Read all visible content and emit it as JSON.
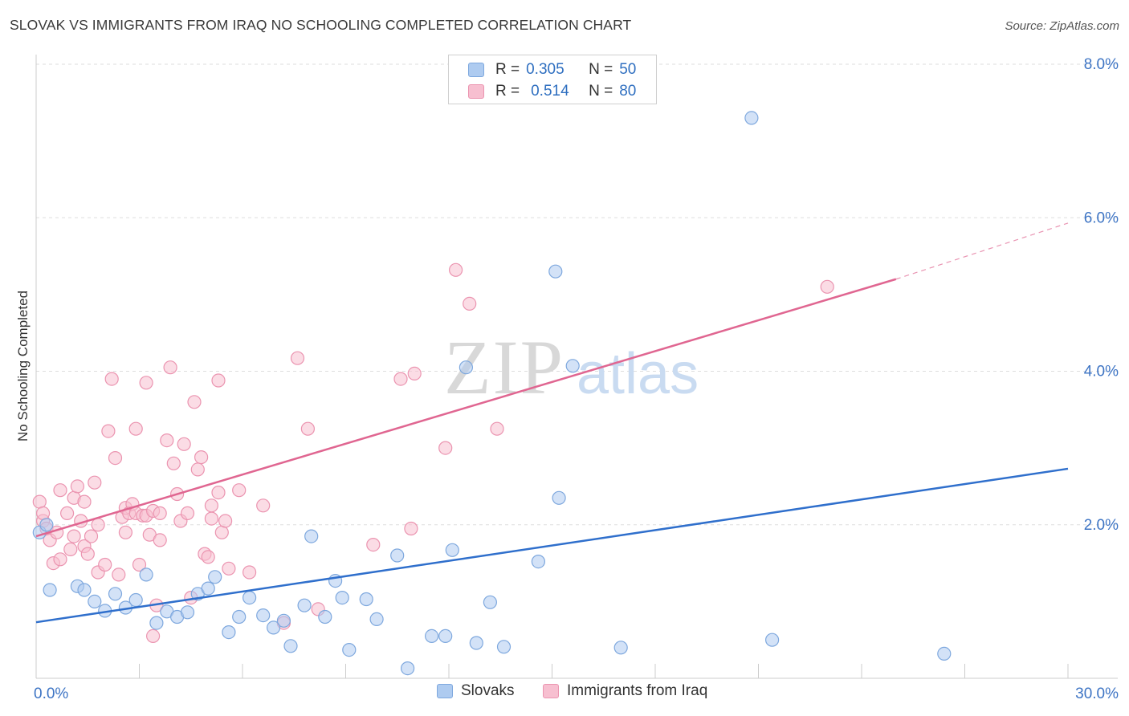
{
  "header": {
    "title": "SLOVAK VS IMMIGRANTS FROM IRAQ NO SCHOOLING COMPLETED CORRELATION CHART",
    "source": "Source: ZipAtlas.com"
  },
  "watermark": {
    "zip": "ZIP",
    "atlas": "atlas"
  },
  "legend": {
    "r_label": "R =",
    "n_label": "N =",
    "series": [
      {
        "name": "Slovaks",
        "r": "0.305",
        "n": "50"
      },
      {
        "name": "Immigrants from Iraq",
        "r": "0.514",
        "n": "80"
      }
    ]
  },
  "colors": {
    "slovaks_fill": "#aecbf0",
    "slovaks_stroke": "#7ea8de",
    "slovaks_line": "#2f6fcc",
    "iraq_fill": "#f7bfd0",
    "iraq_stroke": "#eb94b0",
    "iraq_line": "#e06691",
    "axis_text": "#3d74c4",
    "grid": "#dddddd"
  },
  "chart_data": {
    "type": "scatter",
    "title": "SLOVAK VS IMMIGRANTS FROM IRAQ NO SCHOOLING COMPLETED CORRELATION CHART",
    "xlabel": "",
    "ylabel": "No Schooling Completed",
    "xlim": [
      0,
      30
    ],
    "ylim": [
      0,
      8.4
    ],
    "x_tick_labels": [
      {
        "value": 0,
        "label": "0.0%"
      },
      {
        "value": 30,
        "label": "30.0%"
      }
    ],
    "y_tick_labels": [
      {
        "value": 2,
        "label": "2.0%"
      },
      {
        "value": 4,
        "label": "4.0%"
      },
      {
        "value": 6,
        "label": "6.0%"
      },
      {
        "value": 8,
        "label": "8.0%"
      }
    ],
    "grid": true,
    "legend_position": "top-center",
    "series": [
      {
        "name": "Slovaks",
        "r": 0.305,
        "n": 50,
        "trend": {
          "x0": 0,
          "y0": 0.73,
          "x1": 30,
          "y1": 2.73
        },
        "points": [
          [
            0.1,
            1.9
          ],
          [
            0.3,
            2.0
          ],
          [
            0.4,
            1.15
          ],
          [
            1.2,
            1.2
          ],
          [
            1.4,
            1.15
          ],
          [
            1.7,
            1.0
          ],
          [
            2.0,
            0.88
          ],
          [
            2.3,
            1.1
          ],
          [
            2.6,
            0.92
          ],
          [
            2.9,
            1.02
          ],
          [
            3.2,
            1.35
          ],
          [
            3.5,
            0.72
          ],
          [
            3.8,
            0.87
          ],
          [
            4.1,
            0.8
          ],
          [
            4.4,
            0.86
          ],
          [
            4.7,
            1.1
          ],
          [
            5.0,
            1.17
          ],
          [
            5.2,
            1.32
          ],
          [
            5.6,
            0.6
          ],
          [
            5.9,
            0.8
          ],
          [
            6.2,
            1.05
          ],
          [
            6.6,
            0.82
          ],
          [
            6.9,
            0.66
          ],
          [
            7.2,
            0.75
          ],
          [
            7.4,
            0.42
          ],
          [
            7.8,
            0.95
          ],
          [
            8.0,
            1.85
          ],
          [
            8.4,
            0.8
          ],
          [
            8.7,
            1.27
          ],
          [
            8.9,
            1.05
          ],
          [
            9.1,
            0.37
          ],
          [
            9.6,
            1.03
          ],
          [
            9.9,
            0.77
          ],
          [
            10.5,
            1.6
          ],
          [
            10.8,
            0.13
          ],
          [
            11.5,
            0.55
          ],
          [
            11.9,
            0.55
          ],
          [
            12.1,
            1.67
          ],
          [
            12.5,
            4.05
          ],
          [
            12.8,
            0.46
          ],
          [
            13.2,
            0.99
          ],
          [
            13.6,
            0.41
          ],
          [
            14.6,
            1.52
          ],
          [
            15.1,
            5.3
          ],
          [
            15.2,
            2.35
          ],
          [
            15.6,
            4.07
          ],
          [
            17.0,
            0.4
          ],
          [
            20.8,
            7.3
          ],
          [
            21.4,
            0.5
          ],
          [
            26.4,
            0.32
          ]
        ]
      },
      {
        "name": "Immigrants from Iraq",
        "r": 0.514,
        "n": 80,
        "trend": {
          "x0": 0,
          "y0": 1.85,
          "x1": 25,
          "y1": 5.2
        },
        "trend_extension": {
          "x0": 25,
          "y0": 5.2,
          "x1": 30,
          "y1": 5.93
        },
        "points": [
          [
            0.1,
            2.3
          ],
          [
            0.2,
            2.05
          ],
          [
            0.2,
            2.15
          ],
          [
            0.3,
            1.95
          ],
          [
            0.4,
            1.8
          ],
          [
            0.5,
            1.5
          ],
          [
            0.6,
            1.9
          ],
          [
            0.7,
            1.55
          ],
          [
            0.7,
            2.45
          ],
          [
            0.9,
            2.15
          ],
          [
            1.0,
            1.68
          ],
          [
            1.1,
            1.85
          ],
          [
            1.1,
            2.35
          ],
          [
            1.2,
            2.5
          ],
          [
            1.3,
            2.05
          ],
          [
            1.4,
            1.72
          ],
          [
            1.4,
            2.3
          ],
          [
            1.5,
            1.62
          ],
          [
            1.6,
            1.85
          ],
          [
            1.7,
            2.55
          ],
          [
            1.8,
            1.38
          ],
          [
            1.8,
            2.0
          ],
          [
            2.0,
            1.48
          ],
          [
            2.1,
            3.22
          ],
          [
            2.2,
            3.9
          ],
          [
            2.3,
            2.87
          ],
          [
            2.4,
            1.35
          ],
          [
            2.5,
            2.1
          ],
          [
            2.6,
            1.9
          ],
          [
            2.6,
            2.22
          ],
          [
            2.7,
            2.15
          ],
          [
            2.8,
            2.27
          ],
          [
            2.9,
            3.25
          ],
          [
            2.9,
            2.15
          ],
          [
            3.0,
            1.48
          ],
          [
            3.1,
            2.12
          ],
          [
            3.2,
            2.12
          ],
          [
            3.2,
            3.85
          ],
          [
            3.3,
            1.87
          ],
          [
            3.4,
            2.18
          ],
          [
            3.5,
            0.95
          ],
          [
            3.6,
            2.15
          ],
          [
            3.6,
            1.8
          ],
          [
            3.8,
            3.1
          ],
          [
            3.9,
            4.05
          ],
          [
            4.0,
            2.8
          ],
          [
            4.1,
            2.4
          ],
          [
            4.2,
            2.05
          ],
          [
            4.3,
            3.05
          ],
          [
            4.4,
            2.15
          ],
          [
            4.5,
            1.05
          ],
          [
            4.6,
            3.6
          ],
          [
            4.7,
            2.72
          ],
          [
            4.8,
            2.88
          ],
          [
            4.9,
            1.62
          ],
          [
            5.0,
            1.58
          ],
          [
            5.1,
            2.25
          ],
          [
            5.1,
            2.08
          ],
          [
            5.3,
            3.88
          ],
          [
            5.3,
            2.42
          ],
          [
            5.4,
            1.9
          ],
          [
            5.5,
            2.05
          ],
          [
            5.6,
            1.43
          ],
          [
            5.9,
            2.45
          ],
          [
            6.2,
            1.38
          ],
          [
            6.6,
            2.25
          ],
          [
            7.2,
            0.72
          ],
          [
            7.6,
            4.17
          ],
          [
            7.9,
            3.25
          ],
          [
            8.2,
            0.9
          ],
          [
            9.8,
            1.74
          ],
          [
            10.6,
            3.9
          ],
          [
            10.9,
            1.95
          ],
          [
            11.0,
            3.97
          ],
          [
            11.9,
            3.0
          ],
          [
            12.2,
            5.32
          ],
          [
            12.6,
            4.88
          ],
          [
            13.4,
            3.25
          ],
          [
            23.0,
            5.1
          ],
          [
            3.4,
            0.55
          ]
        ]
      }
    ]
  }
}
